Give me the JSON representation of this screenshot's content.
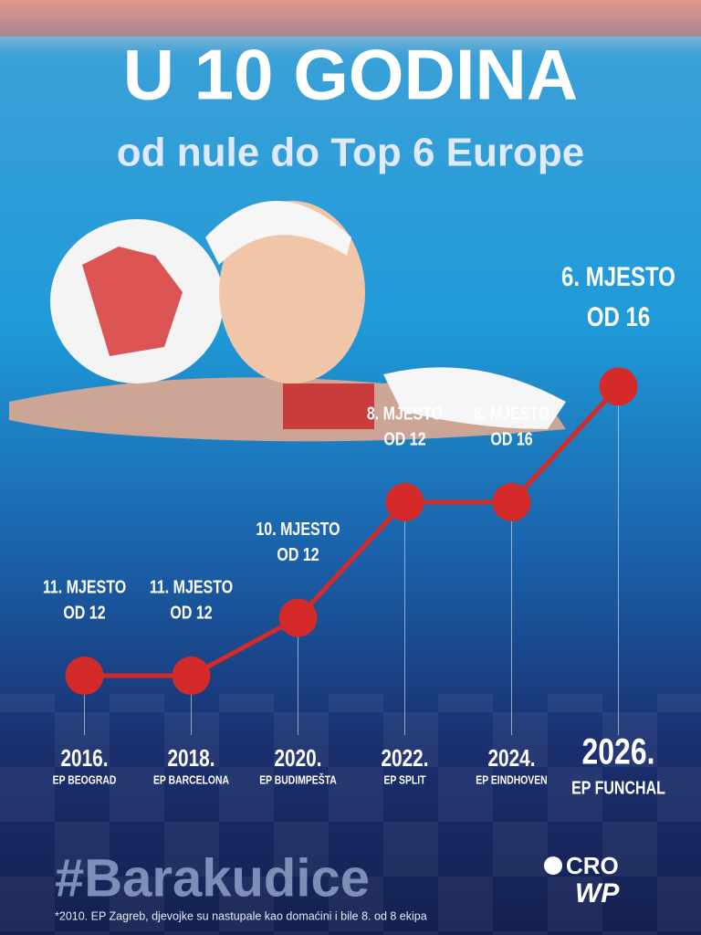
{
  "chart_data": {
    "type": "line",
    "title": "U 10 GODINA",
    "subtitle": "od nule do Top 6 Europe",
    "categories": [
      "2016.",
      "2018.",
      "2020.",
      "2022.",
      "2024.",
      "2026."
    ],
    "events": [
      "EP BEOGRAD",
      "EP BARCELONA",
      "EP BUDIMPEŠTA",
      "EP SPLIT",
      "EP EINDHOVEN",
      "EP FUNCHAL"
    ],
    "values": [
      11,
      11,
      10,
      8,
      8,
      6
    ],
    "value_labels": [
      "11. MJESTO",
      "11. MJESTO",
      "10. MJESTO",
      "8. MJESTO",
      "8. MJESTO",
      "6. MJESTO"
    ],
    "team_labels": [
      "OD 12",
      "OD 12",
      "OD 12",
      "OD 12",
      "OD 16",
      "OD 16"
    ],
    "color": "#d42a2a",
    "ylim": [
      12.5,
      5
    ],
    "hashtag": "#Barakudice",
    "logo": [
      "CRO",
      "WP"
    ],
    "footnote": "*2010. EP Zagreb, djevojke su nastupale kao domaćini i bile 8. od 8 ekipa"
  }
}
